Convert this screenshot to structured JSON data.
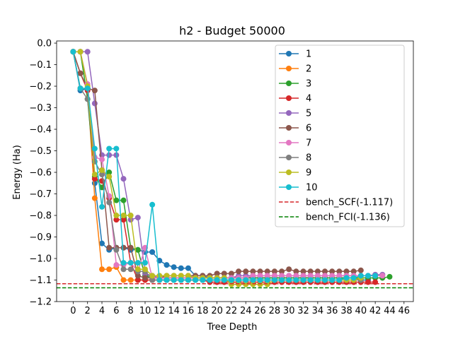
{
  "chart_data": {
    "type": "line",
    "title": "h2 - Budget  50000",
    "xlabel": "Tree Depth",
    "ylabel": "Energy (Ha)",
    "xlim": [
      -2.3,
      47.3
    ],
    "ylim": [
      -1.2,
      0.01
    ],
    "xticks": [
      0,
      2,
      4,
      6,
      8,
      10,
      12,
      14,
      16,
      18,
      20,
      22,
      24,
      26,
      28,
      30,
      32,
      34,
      36,
      38,
      40,
      42,
      44,
      46
    ],
    "yticks": [
      0.0,
      -0.1,
      -0.2,
      -0.3,
      -0.4,
      -0.5,
      -0.6,
      -0.7,
      -0.8,
      -0.9,
      -1.0,
      -1.1,
      -1.2
    ],
    "ytick_labels": [
      "0.0",
      "−0.1",
      "−0.2",
      "−0.3",
      "−0.4",
      "−0.5",
      "−0.6",
      "−0.7",
      "−0.8",
      "−0.9",
      "−1.0",
      "−1.1",
      "−1.2"
    ],
    "grid": false,
    "legend_position": "top-right",
    "series": [
      {
        "name": "1",
        "color": "#1f77b4",
        "x": [
          0,
          1,
          2,
          3,
          4,
          5,
          6,
          7,
          8,
          9,
          10,
          11,
          12,
          13,
          14,
          15,
          16,
          17,
          18,
          19,
          20,
          21,
          22,
          23,
          24,
          25,
          26,
          27,
          28,
          29,
          30,
          31,
          32,
          33,
          34,
          35,
          36,
          37,
          38,
          39,
          40,
          41
        ],
        "y": [
          -0.04,
          -0.22,
          -0.21,
          -0.65,
          -0.93,
          -0.96,
          -0.95,
          -0.95,
          -0.96,
          -0.96,
          -0.97,
          -0.97,
          -1.01,
          -1.03,
          -1.04,
          -1.045,
          -1.045,
          -1.08,
          -1.08,
          -1.09,
          -1.09,
          -1.09,
          -1.09,
          -1.09,
          -1.09,
          -1.09,
          -1.09,
          -1.09,
          -1.09,
          -1.09,
          -1.09,
          -1.09,
          -1.09,
          -1.09,
          -1.09,
          -1.09,
          -1.09,
          -1.09,
          -1.09,
          -1.09,
          -1.1,
          -1.1
        ]
      },
      {
        "name": "2",
        "color": "#ff7f0e",
        "x": [
          0,
          1,
          2,
          3,
          4,
          5,
          6,
          7,
          8,
          9,
          10,
          11,
          12,
          13,
          14,
          15,
          16,
          17,
          18,
          19,
          20,
          21,
          22,
          23,
          24,
          25,
          26,
          27,
          28,
          29,
          30
        ],
        "y": [
          -0.04,
          -0.21,
          -0.21,
          -0.72,
          -1.05,
          -1.05,
          -1.04,
          -1.1,
          -1.1,
          -1.1,
          -1.1,
          -1.1,
          -1.1,
          -1.1,
          -1.1,
          -1.1,
          -1.1,
          -1.1,
          -1.1,
          -1.1,
          -1.1,
          -1.1,
          -1.1,
          -1.1,
          -1.1,
          -1.1,
          -1.1,
          -1.1,
          -1.1,
          -1.1,
          -1.1
        ]
      },
      {
        "name": "3",
        "color": "#2ca02c",
        "x": [
          0,
          1,
          2,
          3,
          4,
          5,
          6,
          7,
          8,
          9,
          10,
          11,
          12,
          13,
          14,
          15,
          16,
          17,
          18,
          19,
          20,
          21,
          22,
          23,
          24,
          25,
          26,
          27,
          28,
          29,
          30,
          31,
          32,
          33,
          34,
          35,
          36,
          37,
          38,
          39,
          40,
          41,
          42,
          43,
          44
        ],
        "y": [
          -0.04,
          -0.04,
          -0.26,
          -0.62,
          -0.67,
          -0.6,
          -0.73,
          -0.73,
          -0.95,
          -0.96,
          -1.08,
          -1.09,
          -1.09,
          -1.09,
          -1.09,
          -1.09,
          -1.09,
          -1.09,
          -1.09,
          -1.09,
          -1.09,
          -1.09,
          -1.09,
          -1.09,
          -1.09,
          -1.09,
          -1.09,
          -1.09,
          -1.09,
          -1.09,
          -1.09,
          -1.09,
          -1.09,
          -1.09,
          -1.09,
          -1.09,
          -1.09,
          -1.09,
          -1.09,
          -1.09,
          -1.09,
          -1.09,
          -1.09,
          -1.09,
          -1.085
        ]
      },
      {
        "name": "4",
        "color": "#d62728",
        "x": [
          0,
          1,
          2,
          3,
          4,
          5,
          6,
          7,
          8,
          9,
          10,
          11,
          12,
          13,
          14,
          15,
          16,
          17,
          18,
          19,
          20,
          21,
          22,
          23,
          24,
          25,
          26,
          27,
          28,
          29,
          30,
          31,
          32,
          33,
          34,
          35,
          36,
          37,
          38,
          39,
          40,
          41,
          42
        ],
        "y": [
          -0.04,
          -0.14,
          -0.22,
          -0.63,
          -0.64,
          -0.72,
          -0.82,
          -0.82,
          -1.02,
          -1.1,
          -1.1,
          -1.1,
          -1.1,
          -1.1,
          -1.1,
          -1.1,
          -1.1,
          -1.1,
          -1.1,
          -1.11,
          -1.11,
          -1.11,
          -1.11,
          -1.11,
          -1.11,
          -1.11,
          -1.11,
          -1.11,
          -1.11,
          -1.11,
          -1.11,
          -1.11,
          -1.11,
          -1.11,
          -1.11,
          -1.11,
          -1.11,
          -1.11,
          -1.11,
          -1.11,
          -1.11,
          -1.11,
          -1.11
        ]
      },
      {
        "name": "5",
        "color": "#9467bd",
        "x": [
          0,
          1,
          2,
          3,
          4,
          5,
          6,
          7,
          8,
          9,
          10,
          11,
          12,
          13,
          14,
          15,
          16,
          17,
          18,
          19,
          20,
          21,
          22,
          23,
          24,
          25,
          26,
          27,
          28,
          29,
          30,
          31,
          32,
          33,
          34,
          35,
          36,
          37,
          38,
          39,
          40,
          41,
          42,
          43
        ],
        "y": [
          -0.04,
          -0.04,
          -0.04,
          -0.28,
          -0.52,
          -0.52,
          -0.52,
          -0.63,
          -0.82,
          -0.81,
          -1.07,
          -1.08,
          -1.09,
          -1.09,
          -1.09,
          -1.09,
          -1.09,
          -1.09,
          -1.09,
          -1.09,
          -1.09,
          -1.09,
          -1.09,
          -1.08,
          -1.08,
          -1.08,
          -1.08,
          -1.08,
          -1.08,
          -1.08,
          -1.08,
          -1.08,
          -1.08,
          -1.08,
          -1.08,
          -1.08,
          -1.08,
          -1.08,
          -1.08,
          -1.08,
          -1.08,
          -1.08,
          -1.075,
          -1.075
        ]
      },
      {
        "name": "6",
        "color": "#8c564b",
        "x": [
          0,
          1,
          2,
          3,
          4,
          5,
          6,
          7,
          8,
          9,
          10,
          11,
          12,
          13,
          14,
          15,
          16,
          17,
          18,
          19,
          20,
          21,
          22,
          23,
          24,
          25,
          26,
          27,
          28,
          29,
          30,
          31,
          32,
          33,
          34,
          35,
          36,
          37,
          38,
          39,
          40
        ],
        "y": [
          -0.04,
          -0.14,
          -0.21,
          -0.22,
          -0.59,
          -0.95,
          -0.95,
          -0.95,
          -0.95,
          -1.08,
          -1.09,
          -1.09,
          -1.09,
          -1.08,
          -1.08,
          -1.08,
          -1.08,
          -1.08,
          -1.08,
          -1.08,
          -1.07,
          -1.07,
          -1.07,
          -1.06,
          -1.06,
          -1.06,
          -1.06,
          -1.06,
          -1.06,
          -1.06,
          -1.05,
          -1.06,
          -1.06,
          -1.06,
          -1.06,
          -1.06,
          -1.06,
          -1.06,
          -1.06,
          -1.06,
          -1.055
        ]
      },
      {
        "name": "7",
        "color": "#e377c2",
        "x": [
          0,
          1,
          2,
          3,
          4,
          5,
          6,
          7,
          8,
          9,
          10,
          11,
          12,
          13,
          14,
          15,
          16,
          17,
          18,
          19,
          20,
          21,
          22,
          23,
          24,
          25,
          26,
          27,
          28,
          29,
          30,
          31,
          32,
          33,
          34,
          35,
          36,
          37,
          38,
          39,
          40,
          41,
          42,
          43
        ],
        "y": [
          -0.04,
          -0.04,
          -0.19,
          -0.53,
          -0.54,
          -0.71,
          -1.03,
          -1.03,
          -1.02,
          -1.06,
          -0.95,
          -1.09,
          -1.09,
          -1.09,
          -1.09,
          -1.09,
          -1.09,
          -1.09,
          -1.09,
          -1.09,
          -1.09,
          -1.09,
          -1.09,
          -1.09,
          -1.09,
          -1.08,
          -1.08,
          -1.08,
          -1.08,
          -1.08,
          -1.08,
          -1.08,
          -1.08,
          -1.08,
          -1.08,
          -1.08,
          -1.08,
          -1.08,
          -1.08,
          -1.08,
          -1.08,
          -1.08,
          -1.08,
          -1.08
        ]
      },
      {
        "name": "8",
        "color": "#7f7f7f",
        "x": [
          0,
          1,
          2,
          3,
          4,
          5,
          6,
          7,
          8,
          9,
          10,
          11,
          12,
          13,
          14,
          15,
          16,
          17,
          18,
          19,
          20,
          21,
          22,
          23,
          24,
          25,
          26,
          27,
          28,
          29,
          30,
          31,
          32,
          33,
          34,
          35,
          36,
          37,
          38,
          39,
          40
        ],
        "y": [
          -0.04,
          -0.21,
          -0.26,
          -0.55,
          -0.61,
          -0.74,
          -0.96,
          -1.05,
          -1.05,
          -1.06,
          -1.06,
          -1.1,
          -1.1,
          -1.1,
          -1.1,
          -1.1,
          -1.1,
          -1.1,
          -1.1,
          -1.1,
          -1.1,
          -1.1,
          -1.1,
          -1.1,
          -1.1,
          -1.1,
          -1.1,
          -1.1,
          -1.1,
          -1.1,
          -1.1,
          -1.1,
          -1.1,
          -1.1,
          -1.1,
          -1.1,
          -1.1,
          -1.1,
          -1.1,
          -1.1,
          -1.1
        ]
      },
      {
        "name": "9",
        "color": "#bcbd22",
        "x": [
          0,
          1,
          2,
          3,
          4,
          5,
          6,
          7,
          8,
          9,
          10,
          11,
          12,
          13,
          14,
          15,
          16,
          17,
          18,
          19,
          20,
          21,
          22,
          23,
          24,
          25,
          26,
          27,
          28,
          29,
          30,
          31,
          32,
          33,
          34,
          35,
          36,
          37,
          38,
          39,
          40
        ],
        "y": [
          -0.04,
          -0.04,
          -0.2,
          -0.61,
          -0.59,
          -0.62,
          -0.8,
          -0.8,
          -0.8,
          -1.05,
          -1.05,
          -1.08,
          -1.08,
          -1.08,
          -1.08,
          -1.08,
          -1.08,
          -1.09,
          -1.09,
          -1.09,
          -1.09,
          -1.09,
          -1.12,
          -1.12,
          -1.12,
          -1.12,
          -1.12,
          -1.12,
          -1.1,
          -1.1,
          -1.1,
          -1.1,
          -1.1,
          -1.1,
          -1.1,
          -1.1,
          -1.1,
          -1.1,
          -1.1,
          -1.1,
          -1.09
        ]
      },
      {
        "name": "10",
        "color": "#17becf",
        "x": [
          0,
          1,
          2,
          3,
          4,
          5,
          6,
          7,
          8,
          9,
          10,
          11,
          12,
          13,
          14,
          15,
          16,
          17,
          18,
          19,
          20,
          21,
          22,
          23,
          24,
          25,
          26,
          27,
          28,
          29,
          30,
          31,
          32,
          33,
          34,
          35,
          36,
          37,
          38,
          39,
          40,
          41,
          42
        ],
        "y": [
          -0.04,
          -0.21,
          -0.21,
          -0.49,
          -0.76,
          -0.49,
          -0.49,
          -1.02,
          -1.02,
          -1.02,
          -1.02,
          -0.75,
          -1.1,
          -1.1,
          -1.1,
          -1.1,
          -1.1,
          -1.1,
          -1.1,
          -1.1,
          -1.1,
          -1.1,
          -1.1,
          -1.1,
          -1.1,
          -1.1,
          -1.1,
          -1.1,
          -1.1,
          -1.1,
          -1.1,
          -1.1,
          -1.1,
          -1.1,
          -1.1,
          -1.1,
          -1.1,
          -1.1,
          -1.09,
          -1.09,
          -1.08,
          -1.08,
          -1.08
        ]
      }
    ],
    "reference_lines": [
      {
        "name": "bench_SCF(-1.117)",
        "y": -1.117,
        "color": "#d62728",
        "style": "dashed"
      },
      {
        "name": "bench_FCI(-1.136)",
        "y": -1.136,
        "color": "#008000",
        "style": "dashed"
      }
    ]
  }
}
